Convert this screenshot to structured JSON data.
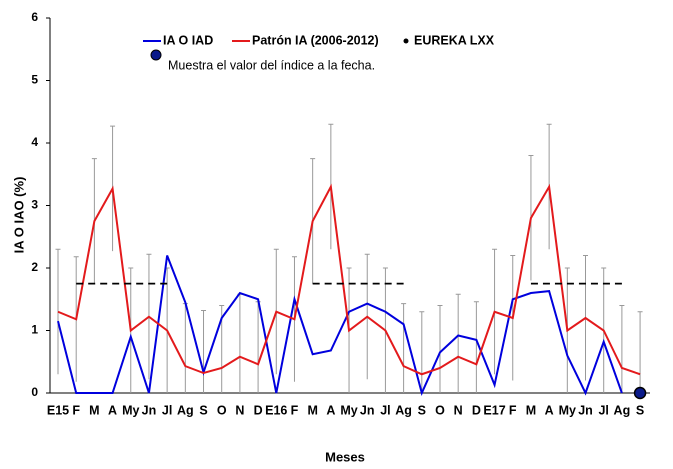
{
  "chart_data": {
    "type": "line",
    "y_label": "IA O IAO (%)",
    "x_label": "Meses",
    "annotation": "Muestra el valor del índice a la fecha.",
    "categories": [
      "E15",
      "F",
      "M",
      "A",
      "My",
      "Jn",
      "Jl",
      "Ag",
      "S",
      "O",
      "N",
      "D",
      "E16",
      "F",
      "M",
      "A",
      "My",
      "Jn",
      "Jl",
      "Ag",
      "S",
      "O",
      "N",
      "D",
      "E17",
      "F",
      "M",
      "A",
      "My",
      "Jn",
      "Jl",
      "Ag",
      "S"
    ],
    "ylim": [
      0,
      6
    ],
    "yticks": [
      0,
      1,
      2,
      3,
      4,
      5,
      6
    ],
    "series": [
      {
        "name": "IA O IAD",
        "color": "#0000dd",
        "values": [
          1.15,
          0,
          0,
          0,
          0.9,
          0,
          2.2,
          1.45,
          0.33,
          1.2,
          1.6,
          1.5,
          0,
          1.5,
          0.62,
          0.68,
          1.3,
          1.43,
          1.3,
          1.1,
          0,
          0.65,
          0.92,
          0.85,
          0.13,
          1.5,
          1.6,
          1.63,
          0.6,
          0,
          0.82,
          0,
          null
        ]
      },
      {
        "name": "Patrón IA (2006-2012)",
        "color": "#e31a1c",
        "values": [
          1.3,
          1.18,
          2.75,
          3.27,
          1.0,
          1.22,
          1.0,
          0.43,
          0.32,
          0.4,
          0.58,
          0.46,
          1.3,
          1.18,
          2.75,
          3.3,
          1.0,
          1.22,
          1.0,
          0.43,
          0.3,
          0.4,
          0.58,
          0.46,
          1.3,
          1.2,
          2.8,
          3.3,
          1.0,
          1.2,
          1.0,
          0.4,
          0.3
        ],
        "errors": [
          1,
          1,
          1,
          1,
          1,
          1,
          1,
          1,
          1,
          1,
          1,
          1,
          1,
          1,
          1,
          1,
          1,
          1,
          1,
          1,
          1,
          1,
          1,
          1,
          1,
          1,
          1,
          1,
          1,
          1,
          1,
          1,
          1
        ],
        "error_color": "#999999"
      },
      {
        "color": "#000000",
        "dashed": true,
        "values": [
          null,
          1.75,
          1.75,
          1.75,
          1.75,
          1.75,
          1.75,
          null,
          null,
          null,
          null,
          null,
          null,
          null,
          1.75,
          1.75,
          1.75,
          1.75,
          1.75,
          1.75,
          null,
          null,
          null,
          null,
          null,
          null,
          1.75,
          1.75,
          1.75,
          1.75,
          1.75,
          1.75,
          null
        ]
      },
      {
        "name": "EUREKA LXX",
        "color": "#0a1a8a",
        "marker": true,
        "values": [
          null,
          null,
          null,
          null,
          null,
          null,
          null,
          null,
          null,
          null,
          null,
          null,
          null,
          null,
          null,
          null,
          null,
          null,
          null,
          null,
          null,
          null,
          null,
          null,
          null,
          null,
          null,
          null,
          null,
          null,
          null,
          null,
          0
        ]
      }
    ]
  }
}
